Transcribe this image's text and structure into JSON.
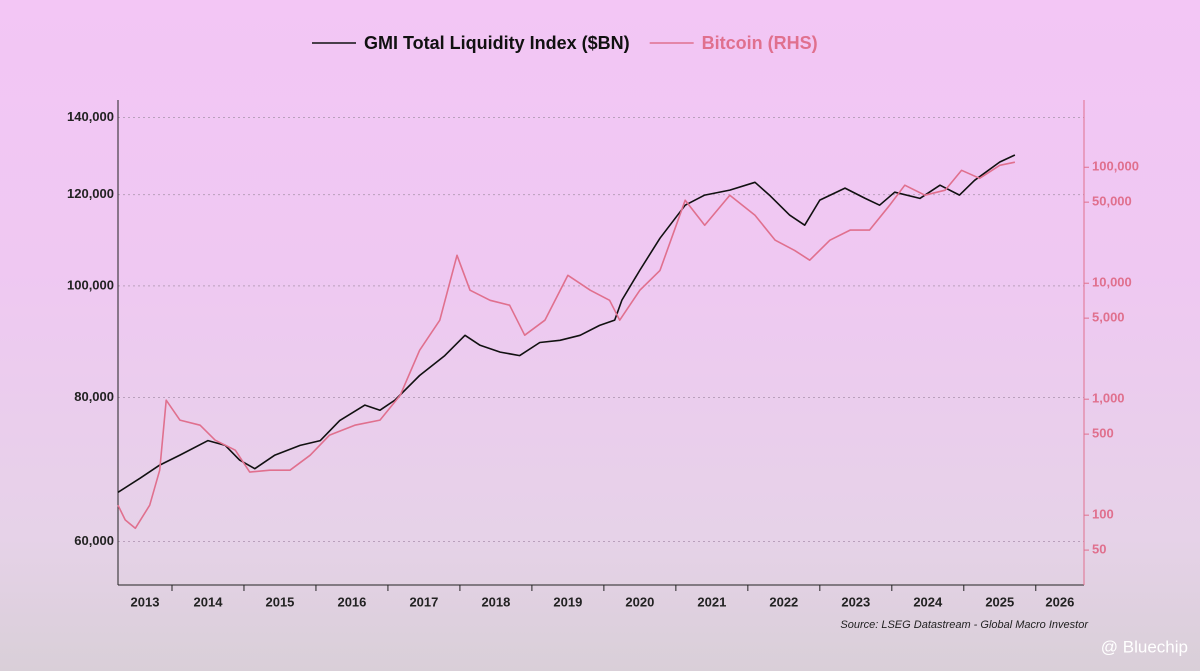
{
  "chart_data": {
    "type": "line",
    "source": "Source: LSEG Datastream - Global Macro Investor",
    "watermark": "@ Bluechip",
    "legend": "top",
    "grid": true,
    "ylog": true,
    "y2log": true,
    "xlim": [
      2013.25,
      2026.67
    ],
    "xticks": [
      {
        "value": 2013,
        "label": "2013"
      },
      {
        "value": 2014,
        "label": "2014"
      },
      {
        "value": 2015,
        "label": "2015"
      },
      {
        "value": 2016,
        "label": "2016"
      },
      {
        "value": 2017,
        "label": "2017"
      },
      {
        "value": 2018,
        "label": "2018"
      },
      {
        "value": 2019,
        "label": "2019"
      },
      {
        "value": 2020,
        "label": "2020"
      },
      {
        "value": 2021,
        "label": "2021"
      },
      {
        "value": 2022,
        "label": "2022"
      },
      {
        "value": 2023,
        "label": "2023"
      },
      {
        "value": 2024,
        "label": "2024"
      },
      {
        "value": 2025,
        "label": "2025"
      },
      {
        "value": 2026,
        "label": "2026"
      }
    ],
    "ylim": [
      55000,
      145000
    ],
    "yticks": [
      {
        "value": 60000,
        "label": "60,000"
      },
      {
        "value": 80000,
        "label": "80,000"
      },
      {
        "value": 100000,
        "label": "100,000"
      },
      {
        "value": 120000,
        "label": "120,000"
      },
      {
        "value": 140000,
        "label": "140,000"
      }
    ],
    "y2lim": [
      25,
      380000
    ],
    "y2ticks": [
      50,
      100,
      500,
      {
        "value": 1000,
        "label": "1,000"
      },
      {
        "value": 5000,
        "label": "5,000"
      },
      {
        "value": 10000,
        "label": "10,000"
      },
      {
        "value": 50000,
        "label": "50,000"
      },
      {
        "value": 100000,
        "label": "100,000"
      }
    ],
    "series": [
      {
        "name": "GMI Total Liquidity Index ($BN)",
        "color": "#111111",
        "x": [
          2013.25,
          2013.56,
          2013.83,
          2014.11,
          2014.5,
          2014.74,
          2014.94,
          2015.15,
          2015.43,
          2015.78,
          2016.06,
          2016.33,
          2016.68,
          2016.89,
          2017.1,
          2017.44,
          2017.79,
          2018.07,
          2018.28,
          2018.56,
          2018.83,
          2019.11,
          2019.39,
          2019.67,
          2019.94,
          2020.15,
          2020.25,
          2020.5,
          2020.78,
          2021.13,
          2021.4,
          2021.75,
          2022.1,
          2022.3,
          2022.58,
          2022.79,
          2023.0,
          2023.35,
          2023.63,
          2023.83,
          2024.04,
          2024.39,
          2024.67,
          2024.94,
          2025.15,
          2025.5,
          2025.71
        ],
        "values": [
          66200,
          68100,
          69900,
          71300,
          73400,
          72700,
          70600,
          69400,
          71300,
          72700,
          73400,
          76400,
          78800,
          78000,
          79600,
          83600,
          87000,
          90600,
          88800,
          87600,
          87000,
          89300,
          89700,
          90600,
          92400,
          93400,
          97200,
          103200,
          110000,
          117500,
          119900,
          121100,
          123000,
          119900,
          115200,
          112900,
          118700,
          121600,
          119100,
          117500,
          120600,
          119100,
          122300,
          119900,
          123500,
          128100,
          129900
        ]
      },
      {
        "name": "Bitcoin (RHS)",
        "color": "#e0708e",
        "axis": "y2",
        "x": [
          2013.25,
          2013.35,
          2013.49,
          2013.69,
          2013.83,
          2013.92,
          2014.11,
          2014.39,
          2014.6,
          2014.88,
          2015.08,
          2015.36,
          2015.64,
          2015.92,
          2016.19,
          2016.54,
          2016.89,
          2017.17,
          2017.44,
          2017.72,
          2017.96,
          2018.14,
          2018.42,
          2018.69,
          2018.9,
          2019.18,
          2019.5,
          2019.81,
          2020.08,
          2020.22,
          2020.5,
          2020.78,
          2021.13,
          2021.4,
          2021.75,
          2022.1,
          2022.38,
          2022.65,
          2022.86,
          2023.14,
          2023.42,
          2023.69,
          2023.97,
          2024.18,
          2024.46,
          2024.74,
          2024.97,
          2025.22,
          2025.5,
          2025.71
        ],
        "values": [
          122,
          91,
          77,
          122,
          244,
          980,
          660,
          597,
          443,
          363,
          235,
          244,
          244,
          329,
          490,
          597,
          660,
          1080,
          2640,
          4800,
          17400,
          8700,
          7130,
          6460,
          3560,
          4800,
          11700,
          8700,
          7130,
          4800,
          8700,
          12900,
          52000,
          31600,
          57400,
          38500,
          23500,
          19200,
          15800,
          23500,
          28700,
          28700,
          47000,
          70000,
          57400,
          63400,
          94200,
          80300,
          104000,
          110500
        ]
      }
    ]
  }
}
